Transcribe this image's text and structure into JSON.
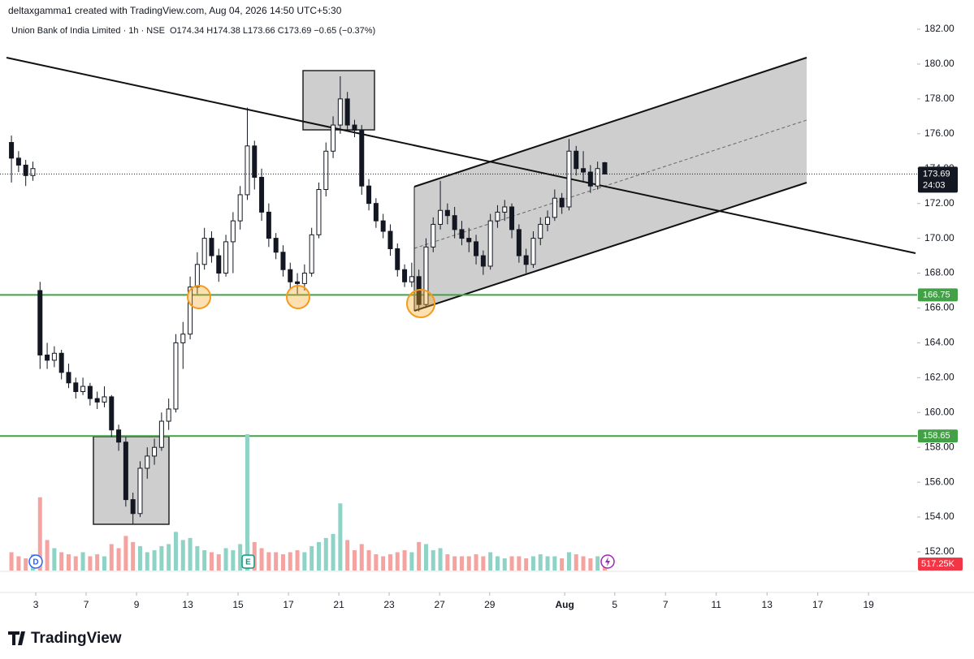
{
  "chart_data": {
    "type": "candlestick",
    "attribution": "deltaxgamma1 created with TradingView.com, Aug 04, 2026 14:50 UTC+5:30",
    "symbol": "Union Bank of India Limited · 1h · NSE",
    "ohlc_line": "O174.34 H174.38 L173.66 C173.69 −0.65 (−0.37%)",
    "candles": [
      [
        175.5,
        175.9,
        173.2,
        174.6
      ],
      [
        174.6,
        175.0,
        173.8,
        174.2
      ],
      [
        174.2,
        174.5,
        173.0,
        173.6
      ],
      [
        173.6,
        174.4,
        173.3,
        174.0
      ],
      [
        167.0,
        167.5,
        162.5,
        163.3
      ],
      [
        163.3,
        164.0,
        162.5,
        163.0
      ],
      [
        163.0,
        163.8,
        162.6,
        163.4
      ],
      [
        163.4,
        163.6,
        161.9,
        162.3
      ],
      [
        162.3,
        162.8,
        161.4,
        161.7
      ],
      [
        161.7,
        162.0,
        160.8,
        161.2
      ],
      [
        161.2,
        162.0,
        161.0,
        161.5
      ],
      [
        161.5,
        161.7,
        160.4,
        160.8
      ],
      [
        160.8,
        161.2,
        160.2,
        160.6
      ],
      [
        160.6,
        161.5,
        160.3,
        160.9
      ],
      [
        160.9,
        161.0,
        158.6,
        159.0
      ],
      [
        159.0,
        159.3,
        157.8,
        158.3
      ],
      [
        158.3,
        158.6,
        154.6,
        155.0
      ],
      [
        155.0,
        155.4,
        153.6,
        154.2
      ],
      [
        154.2,
        157.2,
        154.0,
        156.8
      ],
      [
        156.8,
        158.0,
        156.2,
        157.5
      ],
      [
        157.5,
        158.5,
        157.0,
        158.0
      ],
      [
        158.0,
        160.0,
        157.8,
        159.5
      ],
      [
        159.5,
        160.8,
        159.0,
        160.2
      ],
      [
        160.2,
        164.5,
        160.0,
        164.0
      ],
      [
        164.0,
        165.2,
        162.5,
        164.5
      ],
      [
        164.5,
        167.8,
        164.2,
        167.2
      ],
      [
        167.2,
        169.2,
        166.8,
        168.5
      ],
      [
        168.5,
        170.6,
        168.2,
        170.0
      ],
      [
        170.0,
        170.4,
        168.6,
        169.0
      ],
      [
        169.0,
        169.4,
        167.5,
        168.0
      ],
      [
        168.0,
        170.2,
        167.8,
        169.8
      ],
      [
        169.8,
        171.5,
        168.0,
        171.0
      ],
      [
        171.0,
        173.0,
        170.5,
        172.5
      ],
      [
        172.5,
        177.5,
        172.2,
        175.3
      ],
      [
        175.3,
        175.6,
        172.8,
        173.5
      ],
      [
        173.5,
        174.0,
        171.0,
        171.5
      ],
      [
        171.5,
        172.0,
        169.5,
        170.0
      ],
      [
        170.0,
        170.3,
        168.8,
        169.2
      ],
      [
        169.2,
        169.6,
        167.8,
        168.2
      ],
      [
        168.2,
        168.6,
        167.1,
        167.5
      ],
      [
        167.5,
        168.0,
        166.8,
        167.4
      ],
      [
        167.4,
        168.5,
        167.0,
        168.0
      ],
      [
        168.0,
        170.6,
        167.8,
        170.2
      ],
      [
        170.2,
        173.2,
        170.0,
        172.8
      ],
      [
        172.8,
        175.5,
        172.4,
        175.0
      ],
      [
        175.0,
        177.0,
        174.6,
        176.5
      ],
      [
        176.5,
        179.3,
        176.0,
        178.0
      ],
      [
        178.0,
        178.4,
        176.2,
        176.5
      ],
      [
        176.5,
        176.8,
        175.8,
        176.2
      ],
      [
        176.2,
        176.5,
        172.5,
        173.0
      ],
      [
        173.0,
        173.4,
        171.6,
        172.0
      ],
      [
        172.0,
        172.3,
        170.6,
        171.0
      ],
      [
        171.0,
        171.4,
        170.0,
        170.4
      ],
      [
        170.4,
        170.8,
        169.0,
        169.4
      ],
      [
        169.4,
        169.7,
        167.8,
        168.2
      ],
      [
        168.2,
        168.5,
        167.2,
        167.5
      ],
      [
        167.5,
        168.6,
        167.2,
        167.8
      ],
      [
        167.8,
        168.2,
        165.8,
        166.2
      ],
      [
        166.2,
        170.0,
        166.0,
        169.5
      ],
      [
        169.5,
        171.2,
        169.2,
        170.8
      ],
      [
        170.8,
        173.3,
        170.5,
        171.6
      ],
      [
        171.6,
        172.0,
        170.8,
        171.3
      ],
      [
        171.3,
        171.8,
        170.0,
        170.5
      ],
      [
        170.5,
        171.0,
        169.6,
        170.0
      ],
      [
        170.0,
        170.6,
        169.2,
        169.8
      ],
      [
        169.8,
        170.2,
        168.5,
        169.0
      ],
      [
        169.0,
        169.3,
        167.9,
        168.4
      ],
      [
        168.4,
        171.4,
        168.2,
        171.0
      ],
      [
        171.0,
        171.9,
        170.6,
        171.5
      ],
      [
        171.5,
        172.2,
        171.0,
        171.8
      ],
      [
        171.8,
        172.0,
        170.0,
        170.5
      ],
      [
        170.5,
        170.8,
        168.6,
        169.0
      ],
      [
        169.0,
        169.4,
        168.0,
        168.5
      ],
      [
        168.5,
        170.4,
        168.3,
        170.0
      ],
      [
        170.0,
        171.2,
        169.6,
        170.8
      ],
      [
        170.8,
        171.6,
        170.4,
        171.2
      ],
      [
        171.2,
        172.8,
        171.0,
        172.3
      ],
      [
        172.3,
        172.6,
        171.4,
        171.8
      ],
      [
        171.8,
        175.7,
        171.6,
        175.0
      ],
      [
        175.0,
        175.3,
        173.6,
        174.0
      ],
      [
        174.0,
        175.0,
        173.2,
        173.8
      ],
      [
        173.8,
        174.2,
        172.6,
        173.0
      ],
      [
        173.0,
        174.4,
        172.8,
        174.0
      ],
      [
        174.34,
        174.38,
        173.66,
        173.69
      ]
    ],
    "volume": [
      900,
      700,
      600,
      800,
      3600,
      1500,
      1100,
      900,
      800,
      700,
      900,
      700,
      800,
      700,
      1300,
      1100,
      1700,
      1400,
      1200,
      900,
      1000,
      1200,
      1300,
      1900,
      1500,
      1600,
      1200,
      1000,
      900,
      800,
      1100,
      1000,
      1300,
      6700,
      1400,
      1100,
      900,
      900,
      800,
      900,
      1000,
      900,
      1200,
      1400,
      1600,
      1800,
      3300,
      1500,
      1000,
      1300,
      1000,
      800,
      700,
      800,
      900,
      1000,
      900,
      1400,
      1300,
      1000,
      1100,
      800,
      700,
      700,
      700,
      800,
      700,
      900,
      700,
      600,
      700,
      700,
      600,
      700,
      800,
      700,
      700,
      600,
      900,
      800,
      700,
      600,
      700,
      517.25
    ],
    "last_volume_label": "517.25K",
    "countdown": "24:03",
    "levels": [
      166.75,
      158.65
    ],
    "up_color": "#ffffff",
    "down_color": "#131722",
    "level_color": "#43a047",
    "volume_up_color": "#8fd3c7",
    "volume_down_color": "#f5a3a1",
    "ylim": [
      152,
      182
    ],
    "yticks": [
      {
        "value": 152,
        "label": "152.00"
      },
      {
        "value": 154,
        "label": "154.00"
      },
      {
        "value": 156,
        "label": "156.00"
      },
      {
        "value": 158,
        "label": "158.00"
      },
      {
        "value": 160,
        "label": "160.00"
      },
      {
        "value": 162,
        "label": "162.00"
      },
      {
        "value": 164,
        "label": "164.00"
      },
      {
        "value": 166,
        "label": "166.00"
      },
      {
        "value": 168,
        "label": "168.00"
      },
      {
        "value": 170,
        "label": "170.00"
      },
      {
        "value": 172,
        "label": "172.00"
      },
      {
        "value": 174,
        "label": "174.00"
      },
      {
        "value": 176,
        "label": "176.00"
      },
      {
        "value": 178,
        "label": "178.00"
      },
      {
        "value": 180,
        "label": "180.00"
      },
      {
        "value": 182,
        "label": "182.00"
      }
    ],
    "xlim": [
      -1.6,
      126.7
    ],
    "xticks": [
      {
        "value": 3.41,
        "label": "3"
      },
      {
        "value": 10.45,
        "label": "7"
      },
      {
        "value": 17.5,
        "label": "9"
      },
      {
        "value": 24.66,
        "label": "13"
      },
      {
        "value": 31.7,
        "label": "15"
      },
      {
        "value": 38.75,
        "label": "17"
      },
      {
        "value": 45.8,
        "label": "21"
      },
      {
        "value": 52.84,
        "label": "23"
      },
      {
        "value": 59.9,
        "label": "27"
      },
      {
        "value": 66.9,
        "label": "29"
      },
      {
        "value": 77.4,
        "label": "Aug"
      },
      {
        "value": 84.4,
        "label": "5"
      },
      {
        "value": 91.5,
        "label": "7"
      },
      {
        "value": 98.6,
        "label": "11"
      },
      {
        "value": 105.7,
        "label": "13"
      },
      {
        "value": 112.8,
        "label": "17"
      },
      {
        "value": 119.9,
        "label": "19"
      }
    ],
    "grid": false,
    "brand": "TradingView"
  }
}
